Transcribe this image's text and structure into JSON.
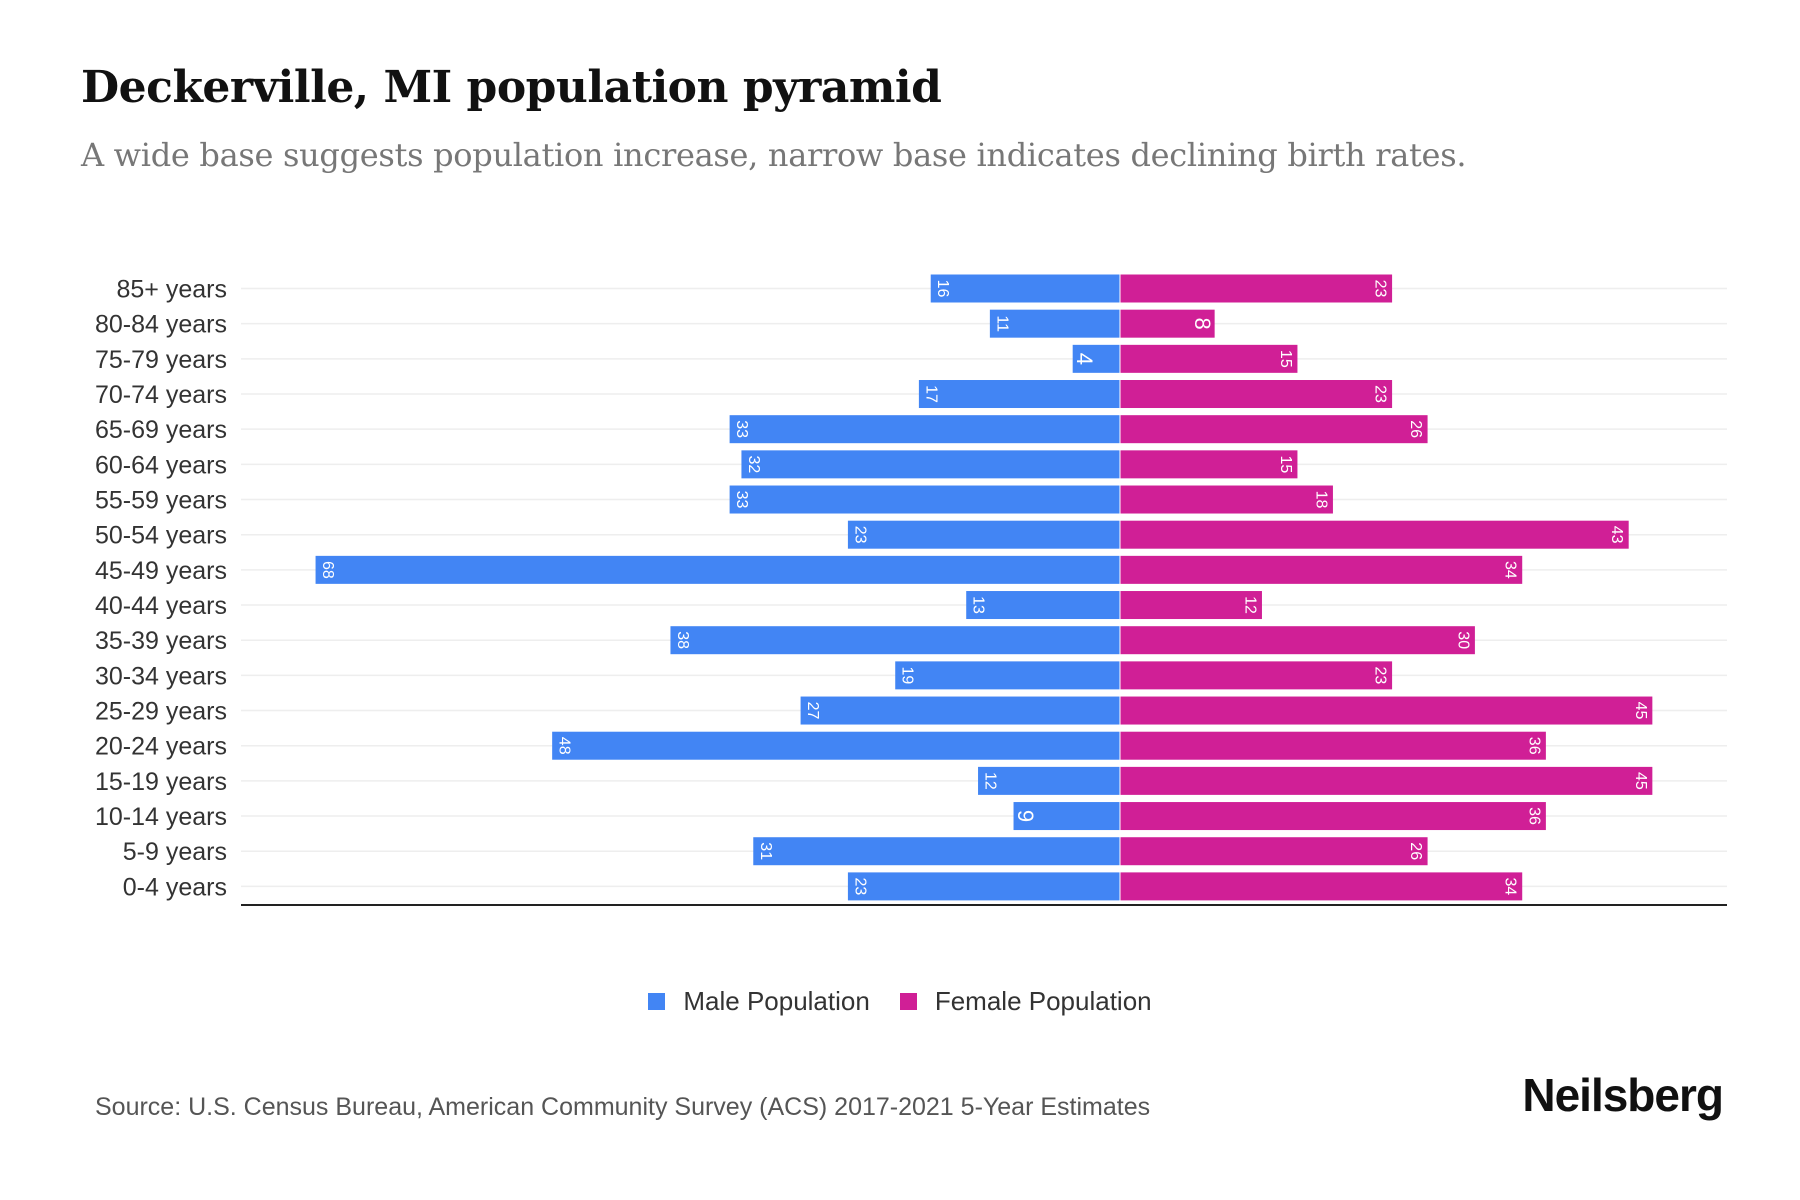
{
  "title": "Deckerville, MI population pyramid",
  "subtitle": "A wide base suggests population increase, narrow base indicates declining birth rates.",
  "source": "Source: U.S. Census Bureau, American Community Survey (ACS) 2017-2021 5-Year Estimates",
  "logo": "Neilsberg",
  "legend": {
    "male": "Male Population",
    "female": "Female Population"
  },
  "colors": {
    "male": "#4285f4",
    "female": "#d01f96"
  },
  "chart_data": {
    "type": "bar",
    "orientation": "horizontal-pyramid",
    "categories": [
      "85+ years",
      "80-84 years",
      "75-79 years",
      "70-74 years",
      "65-69 years",
      "60-64 years",
      "55-59 years",
      "50-54 years",
      "45-49 years",
      "40-44 years",
      "35-39 years",
      "30-34 years",
      "25-29 years",
      "20-24 years",
      "15-19 years",
      "10-14 years",
      "5-9 years",
      "0-4 years"
    ],
    "series": [
      {
        "name": "Male Population",
        "values": [
          16,
          11,
          4,
          17,
          33,
          32,
          33,
          23,
          68,
          13,
          38,
          19,
          27,
          48,
          12,
          9,
          31,
          23
        ]
      },
      {
        "name": "Female Population",
        "values": [
          23,
          8,
          15,
          23,
          26,
          15,
          18,
          43,
          34,
          12,
          30,
          23,
          45,
          36,
          45,
          36,
          26,
          34
        ]
      }
    ],
    "grid": true,
    "legend_position": "bottom"
  }
}
